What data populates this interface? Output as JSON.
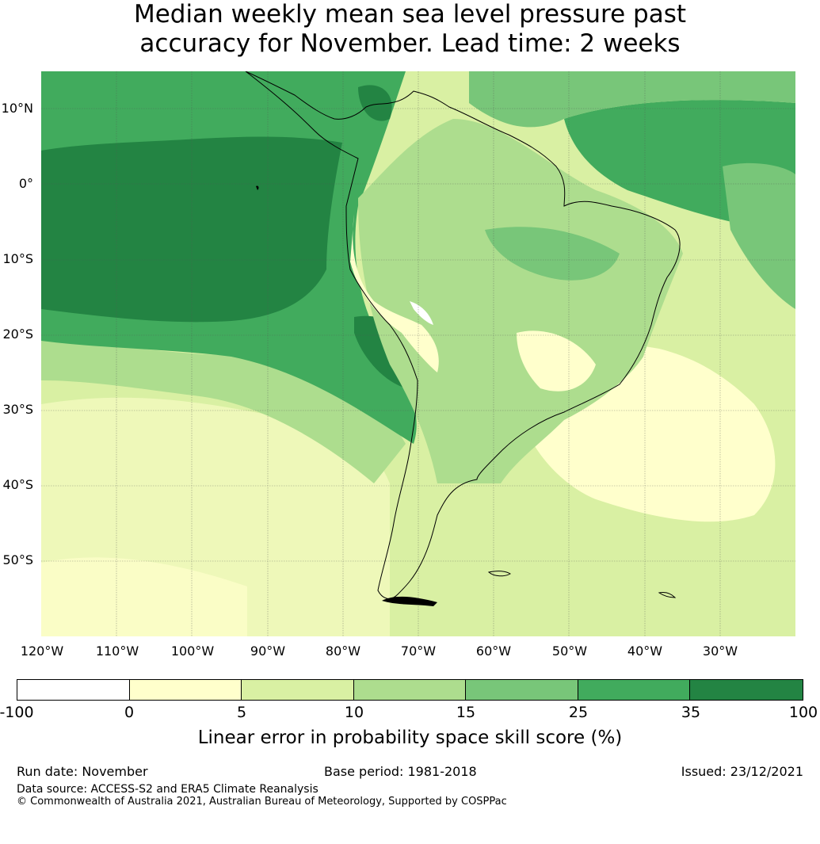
{
  "title": {
    "line1": "Median weekly mean sea level pressure past",
    "line2": "accuracy for November. Lead time: 2 weeks"
  },
  "map": {
    "lat_labels": [
      "10°N",
      "0°",
      "10°S",
      "20°S",
      "30°S",
      "40°S",
      "50°S"
    ],
    "lon_labels": [
      "120°W",
      "110°W",
      "100°W",
      "90°W",
      "80°W",
      "70°W",
      "60°W",
      "50°W",
      "40°W",
      "30°W"
    ],
    "extent": {
      "lon": [
        -120,
        -20
      ],
      "lat": [
        -60,
        15
      ]
    }
  },
  "colorbar": {
    "ticks": [
      "-100",
      "0",
      "5",
      "10",
      "15",
      "25",
      "35",
      "100"
    ],
    "colors": [
      "#ffffff",
      "#ffffcc",
      "#d9f0a3",
      "#addd8e",
      "#78c679",
      "#41ab5d",
      "#238443"
    ],
    "label": "Linear error in probability space skill score (%)"
  },
  "footer": {
    "run_date": "Run date: November",
    "base_period": "Base period: 1981-2018",
    "issued": "Issued: 23/12/2021",
    "data_source": "Data source: ACCESS-S2 and ERA5 Climate Reanalysis",
    "copyright": "© Commonwealth of Australia 2021, Australian Bureau of Meteorology, Supported by COSPPac"
  }
}
